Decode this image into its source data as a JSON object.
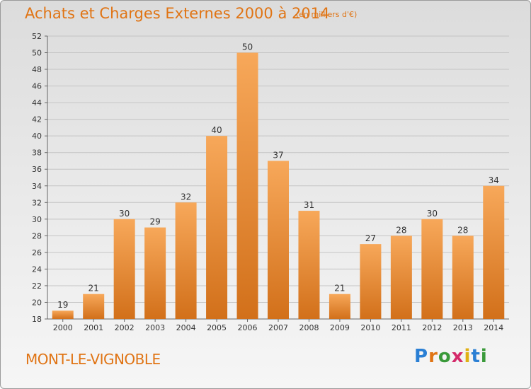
{
  "header": {
    "title": "Achats et Charges Externes 2000 à 2014",
    "subtitle": "(en milliers d'€)"
  },
  "footer": {
    "town": "MONT-LE-VIGNOBLE",
    "logo_text": "Proxiti"
  },
  "colors": {
    "accent": "#e07414",
    "bar_light": "#f5a550",
    "bar_dark": "#d06e16"
  },
  "chart_data": {
    "type": "bar",
    "title": "Achats et Charges Externes 2000 à 2014",
    "subtitle": "(en milliers d'€)",
    "categories": [
      "2000",
      "2001",
      "2002",
      "2003",
      "2004",
      "2005",
      "2006",
      "2007",
      "2008",
      "2009",
      "2010",
      "2011",
      "2012",
      "2013",
      "2014"
    ],
    "values": [
      19,
      21,
      30,
      29,
      32,
      40,
      50,
      37,
      31,
      21,
      27,
      28,
      30,
      28,
      34
    ],
    "ylim": [
      18,
      52
    ],
    "yticks": [
      18,
      20,
      22,
      24,
      26,
      28,
      30,
      32,
      34,
      36,
      38,
      40,
      42,
      44,
      46,
      48,
      50,
      52
    ],
    "grid": true,
    "xlabel": "",
    "ylabel": ""
  }
}
